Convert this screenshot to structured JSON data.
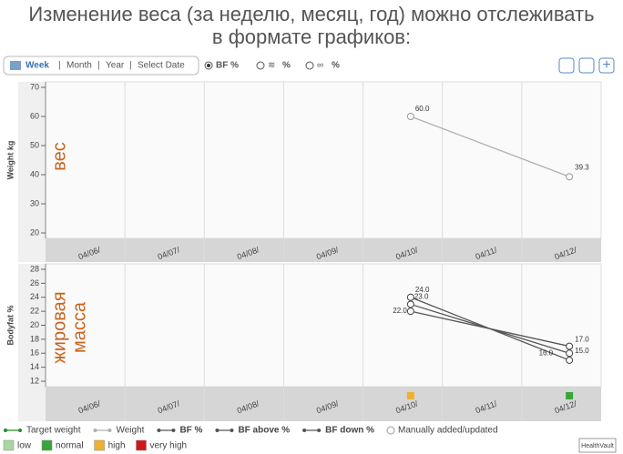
{
  "heading": [
    "Изменение веса (за неделю, месяц, год) можно отслеживать",
    "в формате графиков:"
  ],
  "toolbar": {
    "week": "Week",
    "month": "Month",
    "year": "Year",
    "select_date": "Select Date",
    "bf": "BF %",
    "avg": "%",
    "min": "%"
  },
  "chart_data": [
    {
      "type": "line",
      "ylabel": "Weight kg",
      "annotation": [
        "вес"
      ],
      "categories": [
        "04/06/",
        "04/07/",
        "04/08/",
        "04/09/",
        "04/10/",
        "04/11/",
        "04/12/"
      ],
      "series": [
        {
          "name": "Weight",
          "color": "#b0b0b0",
          "values": [
            null,
            null,
            null,
            null,
            60,
            null,
            39.3
          ],
          "value_labels": [
            null,
            null,
            null,
            null,
            "60.0",
            null,
            "39.3"
          ]
        }
      ],
      "ylim": [
        20,
        70
      ],
      "yticks": [
        20,
        30,
        40,
        50,
        60,
        70
      ]
    },
    {
      "type": "line",
      "ylabel": "Bodyfat %",
      "annotation": [
        "жировая",
        "масса"
      ],
      "categories": [
        "04/06/",
        "04/07/",
        "04/08/",
        "04/09/",
        "04/10/",
        "04/11/",
        "04/12/"
      ],
      "series": [
        {
          "name": "BF above %",
          "color": "#555555",
          "values": [
            null,
            null,
            null,
            null,
            24,
            null,
            15
          ],
          "value_labels": [
            null,
            null,
            null,
            null,
            "24.0",
            null,
            "15.0"
          ]
        },
        {
          "name": "BF %",
          "color": "#555555",
          "values": [
            null,
            null,
            null,
            null,
            23,
            null,
            16
          ],
          "value_labels": [
            null,
            null,
            null,
            null,
            "23.0",
            null,
            "16.0"
          ]
        },
        {
          "name": "BF down %",
          "color": "#555555",
          "values": [
            null,
            null,
            null,
            null,
            22,
            null,
            17
          ],
          "value_labels": [
            null,
            null,
            null,
            null,
            "22.0",
            null,
            "17.0"
          ]
        }
      ],
      "status": [
        null,
        null,
        null,
        null,
        "high",
        null,
        "normal"
      ],
      "ylim": [
        12,
        28
      ],
      "yticks": [
        12,
        14,
        16,
        18,
        20,
        22,
        24,
        26,
        28
      ]
    }
  ],
  "legend": {
    "target": "Target weight",
    "target_color": "#2a8a2a",
    "manual": "Manually added/updated",
    "status": [
      {
        "key": "low",
        "label": "low",
        "color": "#a8d8a0"
      },
      {
        "key": "normal",
        "label": "normal",
        "color": "#3aa53a"
      },
      {
        "key": "high",
        "label": "high",
        "color": "#f0b030"
      },
      {
        "key": "very high",
        "label": "very high",
        "color": "#d01818"
      }
    ]
  }
}
